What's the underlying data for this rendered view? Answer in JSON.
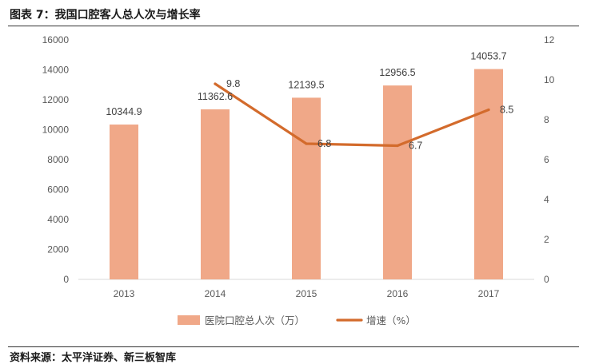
{
  "figure": {
    "title": "图表 7：我国口腔客人总人次与增长率",
    "source": "资料来源：太平洋证券、新三板智库"
  },
  "chart_data": {
    "type": "bar",
    "categories": [
      "2013",
      "2014",
      "2015",
      "2016",
      "2017"
    ],
    "series": [
      {
        "name": "医院口腔总人次（万）",
        "type": "bar",
        "axis": "left",
        "values": [
          10344.9,
          11362.6,
          12139.5,
          12956.5,
          14053.7
        ],
        "labels": [
          "10344.9",
          "11362.6",
          "12139.5",
          "12956.5",
          "14053.7"
        ],
        "color": "#F0A888"
      },
      {
        "name": "增速（%）",
        "type": "line",
        "axis": "right",
        "values": [
          null,
          9.8,
          6.8,
          6.7,
          8.5
        ],
        "labels": [
          "",
          "9.8",
          "6.8",
          "6.7",
          "8.5"
        ],
        "color": "#D36B2C"
      }
    ],
    "y_left": {
      "range": [
        0,
        16000
      ],
      "ticks": [
        "0",
        "2000",
        "4000",
        "6000",
        "8000",
        "10000",
        "12000",
        "14000",
        "16000"
      ]
    },
    "y_right": {
      "range": [
        0,
        12
      ],
      "ticks": [
        "0",
        "2",
        "4",
        "6",
        "8",
        "10",
        "12"
      ]
    },
    "grid": false,
    "legend_position": "bottom"
  }
}
